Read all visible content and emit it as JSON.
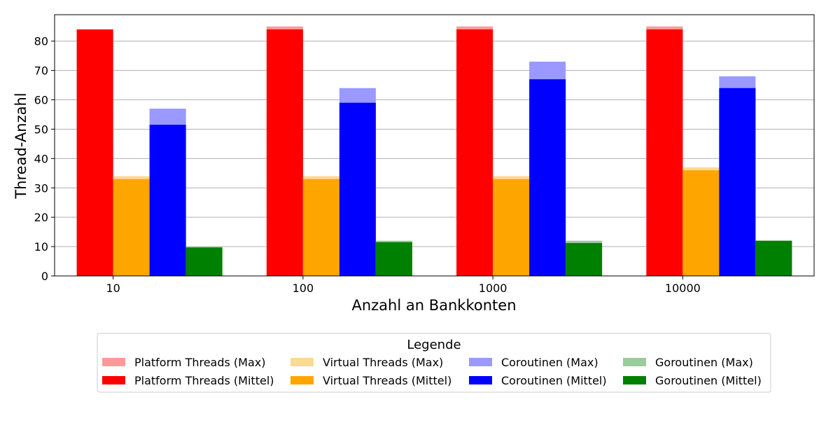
{
  "chart_data": {
    "type": "bar",
    "xlabel": "Anzahl an Bankkonten",
    "ylabel": "Thread-Anzahl",
    "categories": [
      "10",
      "100",
      "1000",
      "10000"
    ],
    "ylim": [
      0,
      89
    ],
    "yticks": [
      0,
      10,
      20,
      30,
      40,
      50,
      60,
      70,
      80
    ],
    "grid": "horizontal",
    "legend_title": "Legende",
    "legend_placement": "bottom-center",
    "series": [
      {
        "name": "Platform Threads",
        "max_label": "Platform Threads (Max)",
        "mean_label": "Platform Threads (Mittel)",
        "max": [
          84,
          85,
          85,
          85
        ],
        "mean": [
          84,
          84,
          84,
          84
        ],
        "color_mean": "#ff0000",
        "color_max": "#ff9999"
      },
      {
        "name": "Virtual Threads",
        "max_label": "Virtual Threads (Max)",
        "mean_label": "Virtual Threads (Mittel)",
        "max": [
          34,
          34,
          34,
          37
        ],
        "mean": [
          33,
          33,
          33,
          36
        ],
        "color_mean": "#ffa500",
        "color_max": "#fdd996"
      },
      {
        "name": "Coroutinen",
        "max_label": "Coroutinen (Max)",
        "mean_label": "Coroutinen (Mittel)",
        "max": [
          57,
          64,
          73,
          68
        ],
        "mean": [
          51.5,
          59,
          67,
          64
        ],
        "color_mean": "#0000ff",
        "color_max": "#9999ff"
      },
      {
        "name": "Goroutinen",
        "max_label": "Goroutinen (Max)",
        "mean_label": "Goroutinen (Mittel)",
        "max": [
          10,
          12,
          12,
          12
        ],
        "mean": [
          9.7,
          11.5,
          11.2,
          12
        ],
        "color_mean": "#008000",
        "color_max": "#99cc99"
      }
    ]
  }
}
